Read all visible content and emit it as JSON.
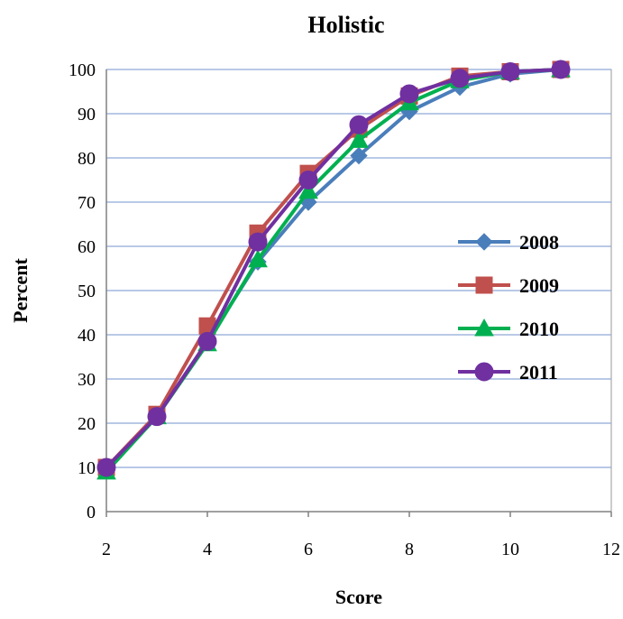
{
  "chart_data": {
    "type": "line",
    "title": "Holistic",
    "xlabel": "Score",
    "ylabel": "Percent",
    "xlim": [
      2,
      12
    ],
    "ylim": [
      0,
      100
    ],
    "x_ticks": [
      "2",
      "4",
      "6",
      "8",
      "10",
      "12"
    ],
    "y_ticks": [
      "0",
      "10",
      "20",
      "30",
      "40",
      "50",
      "60",
      "70",
      "80",
      "90",
      "100"
    ],
    "grid": "horizontal",
    "legend_position": "right",
    "series": [
      {
        "name": "2008",
        "color": "#4a7ebb",
        "marker": "diamond",
        "x": [
          2,
          3,
          4,
          5,
          6,
          7,
          8,
          9,
          10,
          11
        ],
        "y": [
          9.5,
          21.5,
          38.5,
          56.5,
          70,
          80.5,
          90.5,
          96,
          99,
          100
        ]
      },
      {
        "name": "2009",
        "color": "#c0504d",
        "marker": "square",
        "x": [
          2,
          3,
          4,
          5,
          6,
          7,
          8,
          9,
          10,
          11
        ],
        "y": [
          10,
          22,
          42,
          63,
          76.5,
          86.5,
          94,
          98.5,
          99.5,
          100
        ]
      },
      {
        "name": "2010",
        "color": "#00b050",
        "marker": "triangle",
        "x": [
          2,
          3,
          4,
          5,
          6,
          7,
          8,
          9,
          10,
          11
        ],
        "y": [
          9,
          21.5,
          38,
          57,
          72.5,
          84,
          92.5,
          97.5,
          99.5,
          100
        ]
      },
      {
        "name": "2011",
        "color": "#7030a0",
        "marker": "circle",
        "x": [
          2,
          3,
          4,
          5,
          6,
          7,
          8,
          9,
          10,
          11
        ],
        "y": [
          10,
          21.5,
          38.5,
          61,
          75,
          87.5,
          94.5,
          98,
          99.5,
          100
        ]
      }
    ]
  }
}
